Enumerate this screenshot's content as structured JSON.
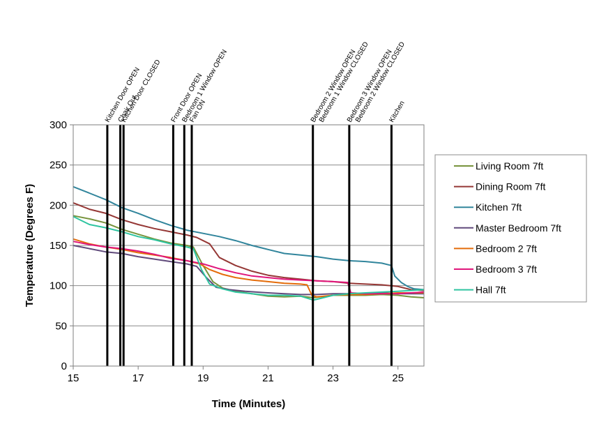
{
  "chart_data": {
    "type": "line",
    "title": "",
    "xlabel": "Time (Minutes)",
    "ylabel": "Temperature (Degrees F)",
    "xlim": [
      15,
      25.8
    ],
    "ylim": [
      0,
      300
    ],
    "x_ticks": [
      15,
      17,
      19,
      21,
      23,
      25
    ],
    "y_ticks": [
      0,
      50,
      100,
      150,
      200,
      250,
      300
    ],
    "grid": "horizontal",
    "legend_position": "right",
    "events": [
      {
        "time": 16.05,
        "labels": [
          "Kitchen Door OPEN"
        ]
      },
      {
        "time": 16.45,
        "labels": [
          "Chair Out"
        ]
      },
      {
        "time": 16.55,
        "labels": [
          "Kitchen Door CLOSED"
        ]
      },
      {
        "time": 18.08,
        "labels": [
          "Front Door OPEN"
        ]
      },
      {
        "time": 18.42,
        "labels": [
          "Bedroom 1 Window OPEN"
        ]
      },
      {
        "time": 18.65,
        "labels": [
          "Fan ON"
        ]
      },
      {
        "time": 22.38,
        "labels": [
          "Bedroom 2 Window OPEN",
          "Bedroom 1 Window CLOSED"
        ]
      },
      {
        "time": 23.5,
        "labels": [
          "Bedroom 3 Window OPEN",
          "Bedroom 2 Window CLOSED"
        ]
      },
      {
        "time": 24.8,
        "labels": [
          "Kitchen"
        ]
      }
    ],
    "series": [
      {
        "name": "Living Room 7ft",
        "color": "#77933c",
        "x": [
          15,
          15.5,
          16,
          16.5,
          17,
          17.5,
          18,
          18.5,
          18.7,
          19,
          19.3,
          19.6,
          20,
          20.5,
          21,
          21.5,
          22,
          22.4,
          22.6,
          23,
          23.5,
          24,
          24.5,
          25,
          25.4,
          25.8
        ],
        "y": [
          187,
          183,
          178,
          170,
          164,
          158,
          153,
          150,
          148,
          125,
          105,
          97,
          93,
          90,
          87,
          86,
          87,
          85,
          86,
          88,
          88,
          88,
          89,
          88,
          86,
          85
        ]
      },
      {
        "name": "Dining Room 7ft",
        "color": "#953735",
        "x": [
          15,
          15.5,
          16,
          16.5,
          17,
          17.5,
          18,
          18.5,
          18.8,
          19.2,
          19.5,
          20,
          20.5,
          21,
          21.5,
          22,
          22.5,
          23,
          23.5,
          24,
          24.5,
          25,
          25.4,
          25.8
        ],
        "y": [
          203,
          195,
          190,
          182,
          176,
          171,
          167,
          163,
          160,
          152,
          135,
          125,
          118,
          113,
          110,
          108,
          106,
          105,
          103,
          102,
          101,
          99,
          95,
          94
        ]
      },
      {
        "name": "Kitchen 7ft",
        "color": "#31859c",
        "x": [
          15,
          15.5,
          16,
          16.5,
          17,
          17.5,
          18,
          18.5,
          19,
          19.5,
          20,
          20.5,
          21,
          21.5,
          22,
          22.5,
          23,
          23.5,
          24,
          24.5,
          24.8,
          24.9,
          25.1,
          25.3,
          25.5,
          25.8
        ],
        "y": [
          223,
          215,
          207,
          197,
          190,
          182,
          175,
          169,
          165,
          161,
          156,
          150,
          145,
          140,
          138,
          136,
          133,
          131,
          130,
          128,
          125,
          112,
          104,
          99,
          96,
          95
        ]
      },
      {
        "name": "Master Bedroom 7ft",
        "color": "#604a7b",
        "x": [
          15,
          15.5,
          16,
          16.5,
          17,
          17.5,
          18,
          18.5,
          18.8,
          19.1,
          19.4,
          19.8,
          20.3,
          21,
          21.5,
          22,
          22.5,
          23,
          23.5,
          24,
          24.5,
          25,
          25.4,
          25.8
        ],
        "y": [
          150,
          146,
          142,
          140,
          136,
          133,
          130,
          127,
          124,
          110,
          98,
          95,
          93,
          91,
          90,
          89,
          89,
          90,
          90,
          90,
          91,
          90,
          90,
          90
        ]
      },
      {
        "name": "Bedroom 2 7ft",
        "color": "#e46c0a",
        "x": [
          15,
          15.5,
          16,
          16.5,
          17,
          17.5,
          18,
          18.5,
          18.9,
          19.2,
          19.6,
          20,
          20.5,
          21,
          21.5,
          22,
          22.2,
          22.35,
          22.5,
          23,
          23.5,
          24,
          24.5,
          25,
          25.4,
          25.8
        ],
        "y": [
          158,
          152,
          148,
          145,
          141,
          138,
          135,
          131,
          127,
          120,
          114,
          110,
          107,
          105,
          103,
          102,
          101,
          88,
          86,
          88,
          89,
          89,
          90,
          91,
          91,
          91
        ]
      },
      {
        "name": "Bedroom 3 7ft",
        "color": "#e0157a",
        "x": [
          15,
          15.5,
          16,
          16.5,
          17,
          17.5,
          18,
          18.5,
          19,
          19.5,
          20,
          20.5,
          21,
          21.5,
          22,
          22.5,
          23,
          23.45,
          23.55,
          24,
          24.5,
          25,
          25.4,
          25.8
        ],
        "y": [
          155,
          151,
          148,
          146,
          143,
          139,
          134,
          131,
          127,
          121,
          116,
          112,
          110,
          108,
          107,
          106,
          105,
          104,
          91,
          90,
          90,
          90,
          91,
          92
        ]
      },
      {
        "name": "Hall 7ft",
        "color": "#2ec4a0",
        "x": [
          15,
          15.5,
          16,
          16.5,
          17,
          17.5,
          18,
          18.5,
          18.7,
          18.95,
          19.2,
          19.6,
          20,
          20.5,
          21,
          21.5,
          22,
          22.4,
          22.6,
          23,
          23.5,
          24,
          24.5,
          25,
          25.4,
          25.8
        ],
        "y": [
          186,
          176,
          172,
          167,
          161,
          157,
          152,
          148,
          146,
          120,
          102,
          96,
          92,
          90,
          88,
          88,
          87,
          82,
          84,
          88,
          90,
          91,
          92,
          93,
          94,
          95
        ]
      }
    ]
  }
}
